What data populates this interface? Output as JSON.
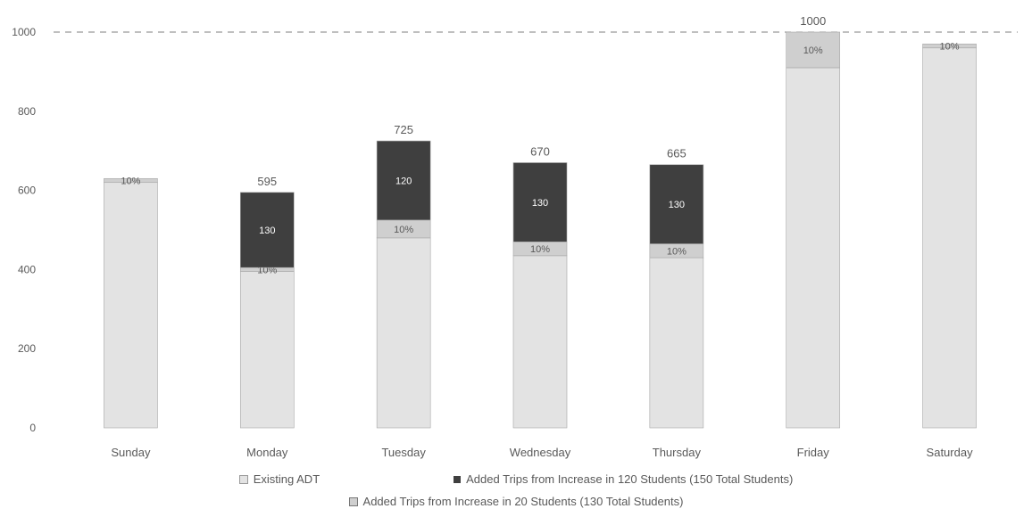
{
  "colors": {
    "existing": "#e3e3e3",
    "added20": "#cfcfcf",
    "added120": "#3f3f3f",
    "grid": "#7f7f7f",
    "text": "#595959"
  },
  "chart_data": {
    "type": "bar",
    "stacked": true,
    "categories": [
      "Sunday",
      "Monday",
      "Tuesday",
      "Wednesday",
      "Thursday",
      "Friday",
      "Saturday"
    ],
    "ylim": [
      0,
      1000
    ],
    "yticks": [
      "0",
      "200",
      "400",
      "600",
      "800",
      "1000"
    ],
    "grid": "dashed line at top",
    "legend_position": "bottom",
    "series": [
      {
        "name": "Existing ADT",
        "values": [
          620,
          395,
          480,
          435,
          430,
          910,
          960
        ],
        "labels": [
          "",
          "",
          "",
          "",
          "",
          "",
          ""
        ]
      },
      {
        "name": "Added Trips from Increase in 20 Students (130 Total Students)",
        "values": [
          10,
          10,
          45,
          35,
          35,
          90,
          10
        ],
        "labels": [
          "10%",
          "10%",
          "10%",
          "10%",
          "10%",
          "10%",
          "10%"
        ]
      },
      {
        "name": "Added Trips from Increase in 120 Students (150 Total Students)",
        "values": [
          0,
          190,
          200,
          200,
          200,
          0,
          0
        ],
        "labels": [
          "",
          "130",
          "120",
          "130",
          "130",
          "",
          ""
        ]
      }
    ],
    "totals": [
      "",
      "595",
      "725",
      "670",
      "665",
      "1000",
      ""
    ]
  },
  "legend": {
    "row1": [
      {
        "key": "existing",
        "label": "Existing ADT"
      },
      {
        "key": "added120",
        "label": "Added Trips from Increase in 120 Students (150 Total Students)"
      }
    ],
    "row2": [
      {
        "key": "added20",
        "label": "Added Trips from Increase in 20 Students (130 Total Students)"
      }
    ]
  }
}
